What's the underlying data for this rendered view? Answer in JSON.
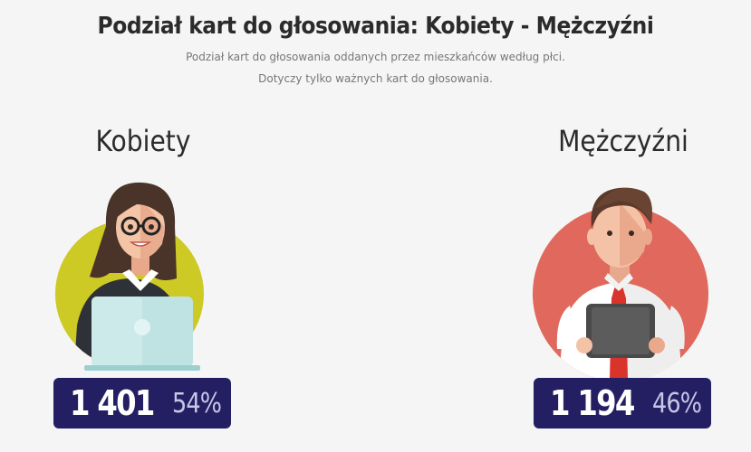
{
  "header": {
    "title": "Podział kart do głosowania: Kobiety - Mężczyźni",
    "subtitle_line1": "Podział kart do głosowania oddanych przez mieszkańców według płci.",
    "subtitle_line2": "Dotyczy tylko ważnych kart do głosowania."
  },
  "women": {
    "label": "Kobiety",
    "count": "1 401",
    "percent": "54%",
    "circle_color": "#c8c41e",
    "figure_icon": "woman-with-laptop-icon"
  },
  "men": {
    "label": "Mężczyźni",
    "count": "1 194",
    "percent": "46%",
    "circle_color": "#e0685c",
    "figure_icon": "man-with-tablet-icon"
  },
  "colors": {
    "stat_background": "#241f63",
    "count_text": "#ffffff",
    "percent_text": "#c9c5e6"
  }
}
